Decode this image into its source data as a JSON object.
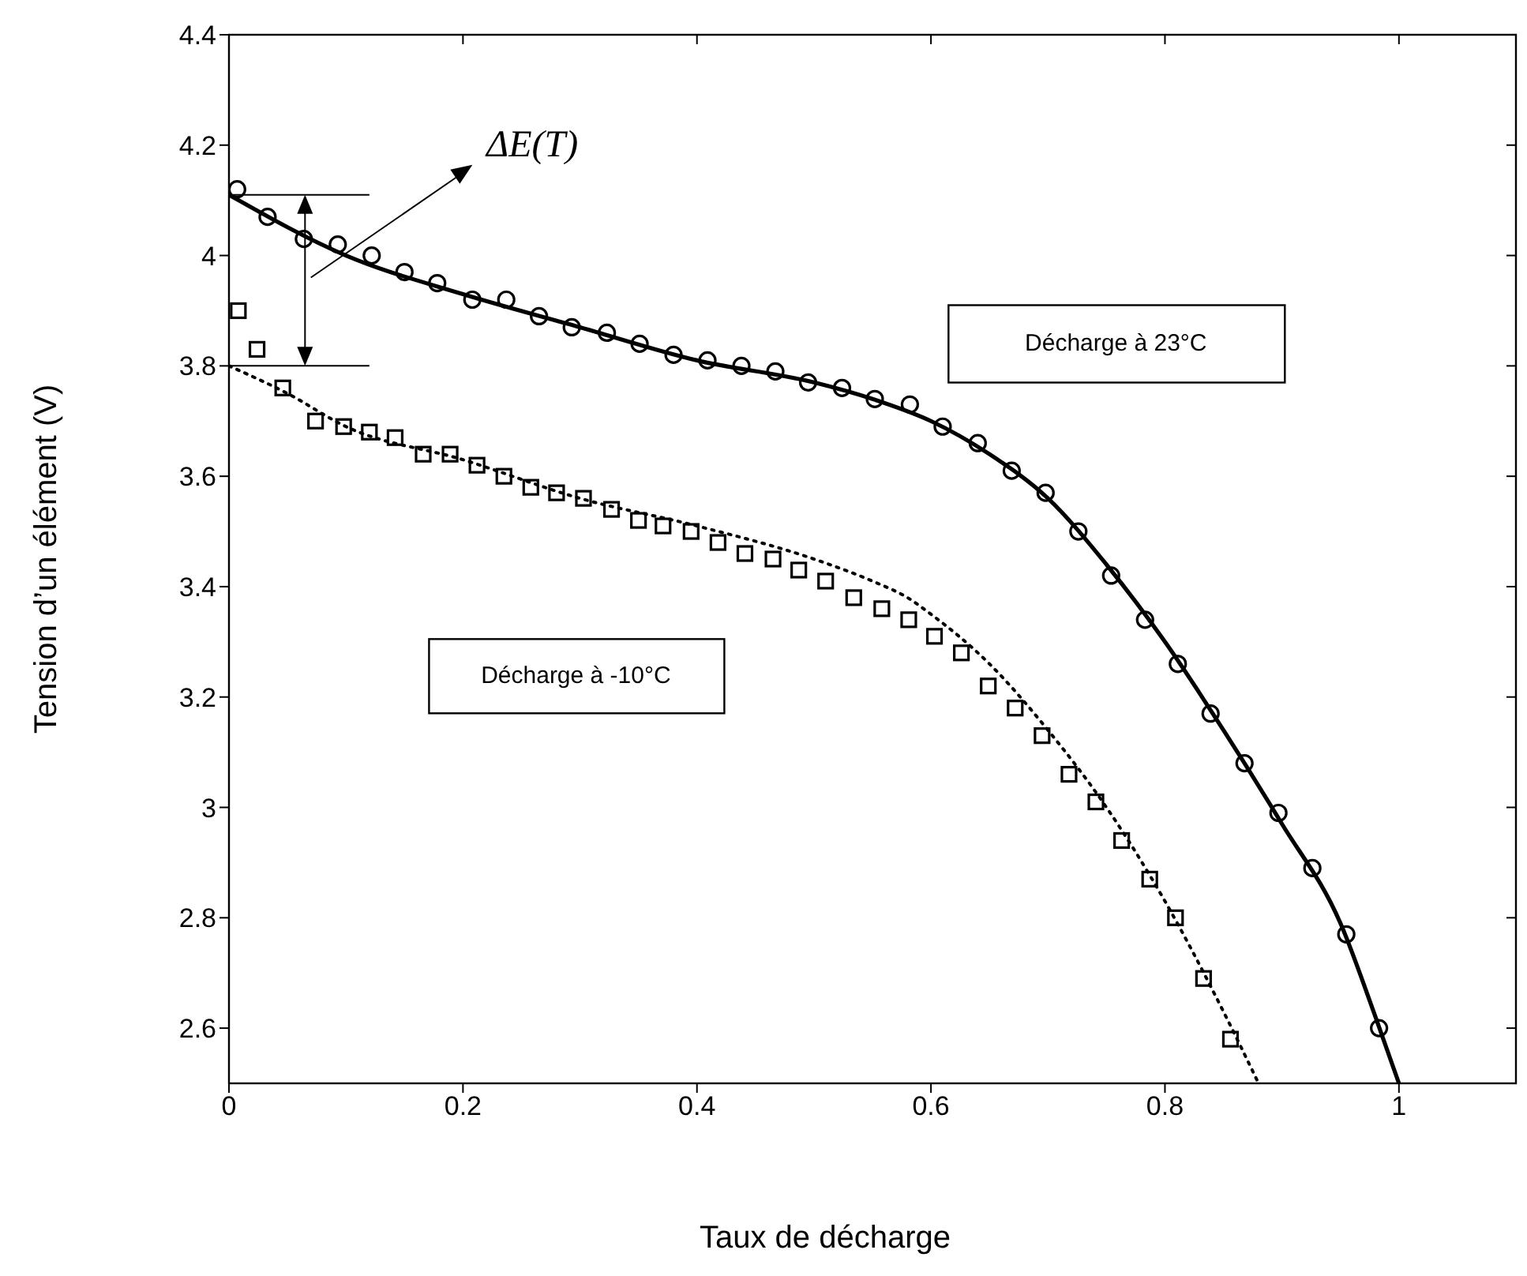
{
  "chart_data": {
    "type": "scatter",
    "xlabel": "Taux de décharge",
    "ylabel": "Tension d’un élément (V)",
    "xlim": [
      0,
      1.1
    ],
    "ylim": [
      2.5,
      4.4
    ],
    "xticks": [
      0,
      0.2,
      0.4,
      0.6,
      0.8,
      1
    ],
    "yticks": [
      2.6,
      2.8,
      3,
      3.2,
      3.4,
      3.6,
      3.8,
      4,
      4.2,
      4.4
    ],
    "grid": false,
    "annotations": [
      "ΔE(T)",
      "Décharge à 23°C",
      "Décharge à -10°C"
    ],
    "series": [
      {
        "type": "scatter",
        "marker": "circle",
        "color": "#000000",
        "x": [
          0.007,
          0.033,
          0.064,
          0.093,
          0.122,
          0.15,
          0.178,
          0.208,
          0.237,
          0.265,
          0.293,
          0.323,
          0.351,
          0.38,
          0.409,
          0.438,
          0.467,
          0.495,
          0.524,
          0.552,
          0.582,
          0.61,
          0.64,
          0.669,
          0.698,
          0.726,
          0.754,
          0.783,
          0.811,
          0.839,
          0.868,
          0.897,
          0.926,
          0.955,
          0.983
        ],
        "values": [
          4.12,
          4.07,
          4.03,
          4.02,
          4.0,
          3.97,
          3.95,
          3.92,
          3.92,
          3.89,
          3.87,
          3.86,
          3.84,
          3.82,
          3.81,
          3.8,
          3.79,
          3.77,
          3.76,
          3.74,
          3.73,
          3.69,
          3.66,
          3.61,
          3.57,
          3.5,
          3.42,
          3.34,
          3.26,
          3.17,
          3.08,
          2.99,
          2.89,
          2.77,
          2.6
        ]
      },
      {
        "type": "line",
        "line_style": "solid",
        "marker": "none",
        "color": "#000000",
        "x": [
          0,
          0.1,
          0.2,
          0.3,
          0.4,
          0.5,
          0.55,
          0.6,
          0.65,
          0.7,
          0.75,
          0.8,
          0.85,
          0.9,
          0.95,
          0.98,
          1.0
        ],
        "values": [
          4.11,
          4.0,
          3.93,
          3.87,
          3.81,
          3.77,
          3.74,
          3.7,
          3.64,
          3.56,
          3.44,
          3.3,
          3.14,
          2.97,
          2.79,
          2.62,
          2.5
        ]
      },
      {
        "type": "scatter",
        "marker": "square",
        "color": "#000000",
        "x": [
          0.008,
          0.024,
          0.046,
          0.074,
          0.098,
          0.12,
          0.142,
          0.166,
          0.189,
          0.212,
          0.235,
          0.258,
          0.28,
          0.303,
          0.327,
          0.35,
          0.371,
          0.395,
          0.418,
          0.441,
          0.465,
          0.487,
          0.51,
          0.534,
          0.558,
          0.581,
          0.603,
          0.626,
          0.649,
          0.672,
          0.695,
          0.718,
          0.741,
          0.763,
          0.787,
          0.809,
          0.833,
          0.856
        ],
        "values": [
          3.9,
          3.83,
          3.76,
          3.7,
          3.69,
          3.68,
          3.67,
          3.64,
          3.64,
          3.62,
          3.6,
          3.58,
          3.57,
          3.56,
          3.54,
          3.52,
          3.51,
          3.5,
          3.48,
          3.46,
          3.45,
          3.43,
          3.41,
          3.38,
          3.36,
          3.34,
          3.31,
          3.28,
          3.22,
          3.18,
          3.13,
          3.06,
          3.01,
          2.94,
          2.87,
          2.8,
          2.69,
          2.58
        ]
      },
      {
        "type": "line",
        "line_style": "dotted",
        "marker": "none",
        "color": "#000000",
        "x": [
          0,
          0.05,
          0.1,
          0.2,
          0.3,
          0.4,
          0.5,
          0.55,
          0.58,
          0.6,
          0.65,
          0.7,
          0.75,
          0.8,
          0.85,
          0.88
        ],
        "values": [
          3.8,
          3.75,
          3.69,
          3.63,
          3.56,
          3.51,
          3.45,
          3.41,
          3.38,
          3.35,
          3.26,
          3.14,
          3.0,
          2.83,
          2.63,
          2.5
        ]
      }
    ]
  }
}
